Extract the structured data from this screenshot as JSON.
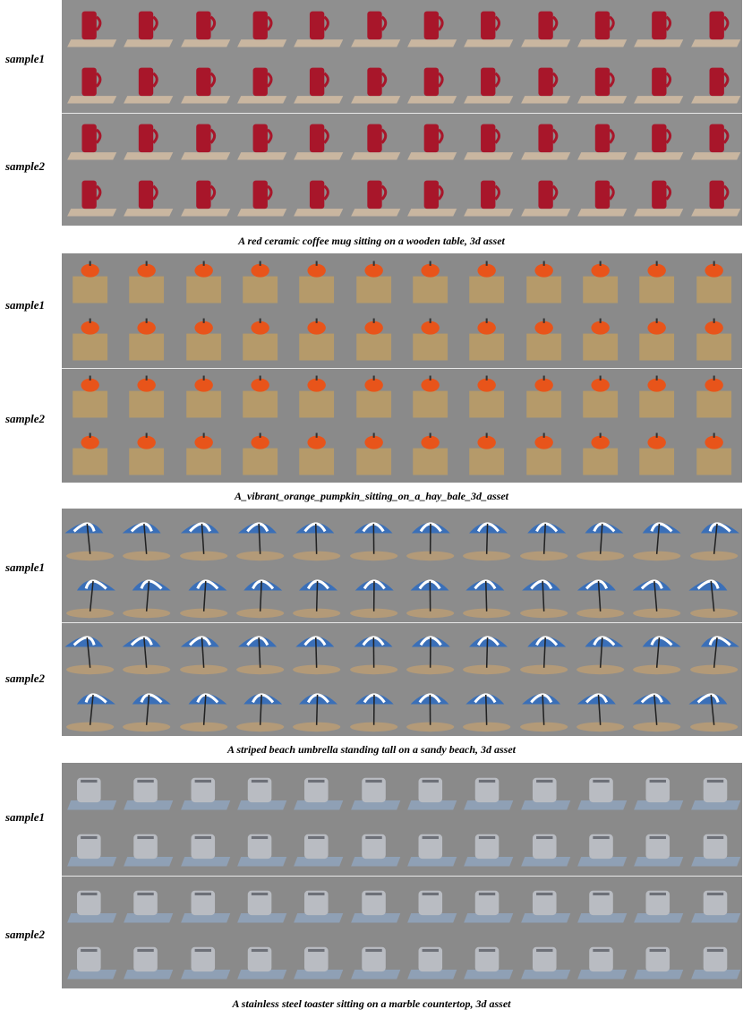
{
  "figure": {
    "sample_labels": [
      "sample1",
      "sample2"
    ],
    "groups": [
      {
        "caption": "A red ceramic coffee mug sitting on a wooden table, 3d asset",
        "object_icon": "mug-icon",
        "colors": {
          "bg": "#8f8f8f",
          "object": "#a8162a",
          "base": "#c9b6a0"
        }
      },
      {
        "caption": "A_vibrant_orange_pumpkin_sitting_on_a_hay_bale_3d_asset",
        "object_icon": "pumpkin-on-hay-icon",
        "colors": {
          "bg": "#8a8a8a",
          "object": "#e8541a",
          "base": "#b59a6a"
        }
      },
      {
        "caption": "A striped beach umbrella standing tall on a sandy beach, 3d asset",
        "object_icon": "beach-umbrella-icon",
        "colors": {
          "bg": "#8c8c8c",
          "object": "#3a6fb8",
          "base": "#b39a78"
        }
      },
      {
        "caption": "A stainless steel toaster sitting on a marble countertop, 3d asset",
        "object_icon": "toaster-icon",
        "colors": {
          "bg": "#8a8a8a",
          "object": "#b9bcc2",
          "base": "#8fa0b5"
        }
      }
    ]
  }
}
